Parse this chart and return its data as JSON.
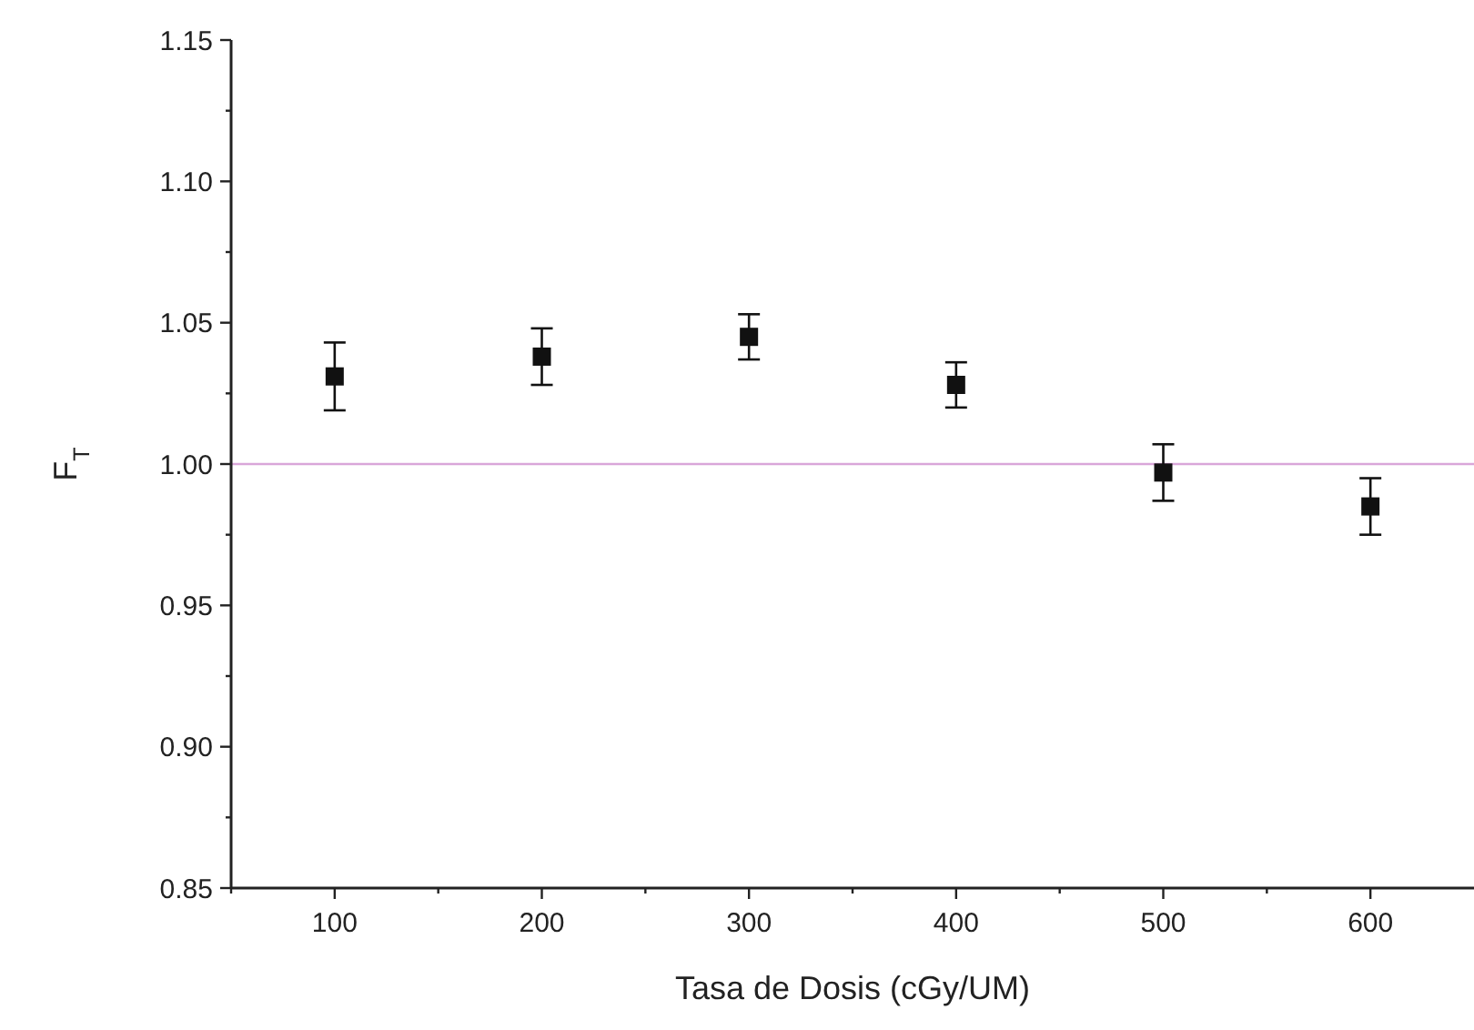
{
  "chart_data": {
    "type": "scatter",
    "xlabel": "Tasa de Dosis (cGy/UM)",
    "ylabel": "F$_{T}$",
    "x": [
      100,
      200,
      300,
      400,
      500,
      600
    ],
    "series": [
      {
        "color": "#111111",
        "values": [
          1.031,
          1.038,
          1.045,
          1.028,
          0.997,
          0.985
        ],
        "errors": [
          0.012,
          0.01,
          0.008,
          0.008,
          0.01,
          0.01
        ]
      }
    ],
    "marker": "square",
    "xlim": [
      50,
      650
    ],
    "xticks": [
      {
        "value": 50,
        "label": null
      },
      100,
      {
        "value": 150,
        "label": null
      },
      200,
      {
        "value": 250,
        "label": null
      },
      300,
      {
        "value": 350,
        "label": null
      },
      400,
      {
        "value": 450,
        "label": null
      },
      500,
      {
        "value": 550,
        "label": null
      },
      600
    ],
    "ylim": [
      0.85,
      1.15
    ],
    "yticks": [
      {
        "value": 0.85,
        "label": "0.85"
      },
      {
        "value": 0.875,
        "label": null
      },
      {
        "value": 0.9,
        "label": "0.90"
      },
      {
        "value": 0.925,
        "label": null
      },
      {
        "value": 0.95,
        "label": "0.95"
      },
      {
        "value": 0.975,
        "label": null
      },
      {
        "value": 1.0,
        "label": "1.00"
      },
      {
        "value": 1.025,
        "label": null
      },
      {
        "value": 1.05,
        "label": "1.05"
      },
      {
        "value": 1.075,
        "label": null
      },
      {
        "value": 1.1,
        "label": "1.10"
      },
      {
        "value": 1.125,
        "label": null
      },
      {
        "value": 1.15,
        "label": "1.15"
      }
    ],
    "ref_lines": [
      {
        "axis": "y",
        "value": 1.0,
        "color": "#d9a6d9"
      }
    ],
    "grid": false
  }
}
